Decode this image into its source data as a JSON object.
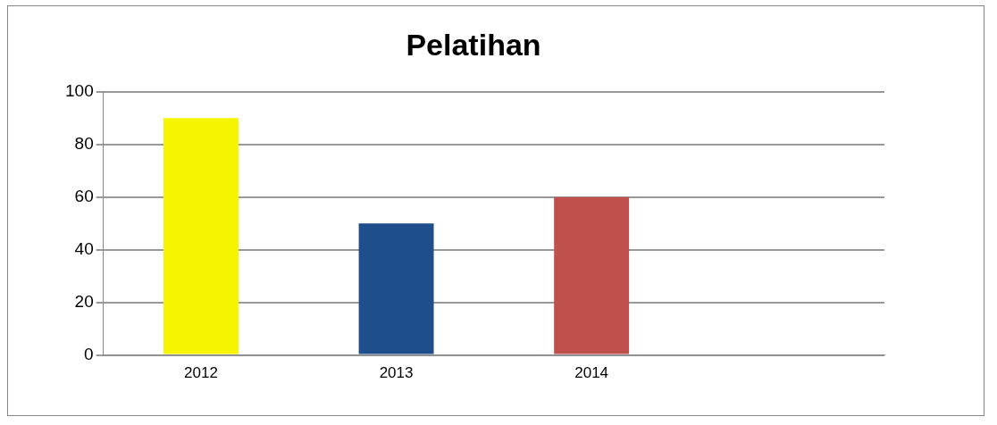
{
  "chart_data": {
    "type": "bar",
    "title": "Pelatihan",
    "categories": [
      "2012",
      "2013",
      "2014",
      null
    ],
    "values": [
      90,
      50,
      60,
      null
    ],
    "colors": [
      "#f5f500",
      "#1f4e8c",
      "#c0504d",
      "#ffffff"
    ],
    "ylim": [
      0,
      100
    ],
    "yticks": [
      0,
      20,
      40,
      60,
      80,
      100
    ],
    "grid": "y",
    "legend": false
  }
}
